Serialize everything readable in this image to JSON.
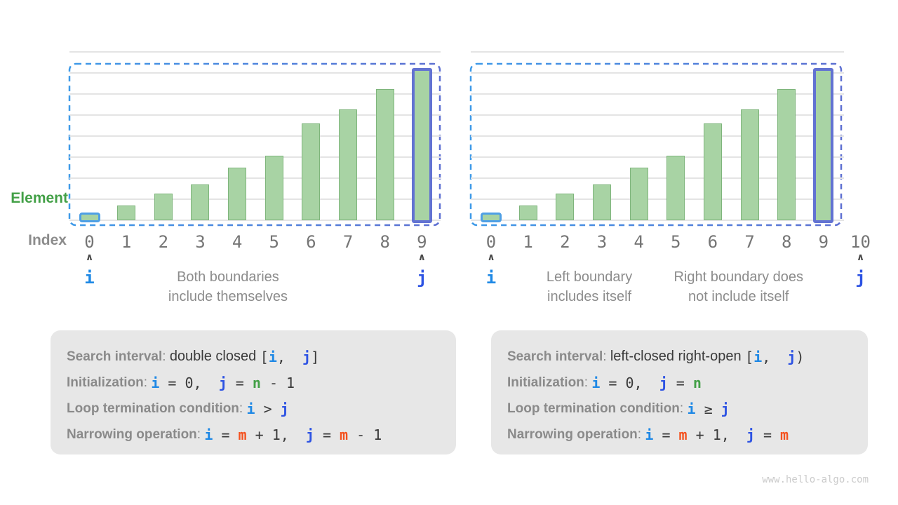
{
  "page": {
    "watermark": "www.hello-algo.com"
  },
  "colors": {
    "i": "#1E88E5",
    "j": "#2D53E3",
    "n": "#43A047",
    "m": "#F4511E",
    "bar_fill": "#A8D3A4",
    "bar_stroke": "#7FB57C",
    "highlight_border": "#6272D2",
    "small_bar_border": "#4E9FE5",
    "selection_dash_left": "#3E9AE8",
    "selection_dash_right": "#5E70D2",
    "gridline": "#E4E4E4",
    "element_label": "#43A047",
    "index_label": "#8C8C8C",
    "caption_text": "#8C8C8C",
    "box_background": "#E7E7E7"
  },
  "chart_data": [
    {
      "type": "bar",
      "name": "double-closed-interval",
      "title": "Search interval: double closed [i, j]",
      "xlabel": "Index",
      "ylabel": "Element",
      "categories": [
        "0",
        "1",
        "2",
        "3",
        "4",
        "5",
        "6",
        "7",
        "8",
        "9"
      ],
      "values": [
        5,
        10,
        18,
        24,
        35,
        43,
        65,
        74,
        88,
        100
      ],
      "values_unit": "relative bar height, % of tallest bar (no numeric axis shown)",
      "grid": true,
      "legend": "none",
      "pointers": [
        {
          "label": "i",
          "index": 0
        },
        {
          "label": "j",
          "index": 9
        }
      ],
      "highlighted_bars": [
        {
          "index": 0,
          "style": "small-blue-border"
        },
        {
          "index": 9,
          "style": "blue-border"
        }
      ],
      "selection": {
        "from_index": 0,
        "to_index": 9,
        "closed_left": true,
        "closed_right": true
      },
      "captions": [
        {
          "text": "Both boundaries\ninclude themselves",
          "center_index": 3.75
        }
      ]
    },
    {
      "type": "bar",
      "name": "left-closed-right-open-interval",
      "title": "Search interval: left-closed right-open [i, j)",
      "xlabel": "Index",
      "ylabel": "Element",
      "categories": [
        "0",
        "1",
        "2",
        "3",
        "4",
        "5",
        "6",
        "7",
        "8",
        "9",
        "10"
      ],
      "values": [
        5,
        10,
        18,
        24,
        35,
        43,
        65,
        74,
        88,
        100,
        null
      ],
      "values_unit": "relative bar height, % of tallest bar (no numeric axis shown)",
      "grid": true,
      "legend": "none",
      "pointers": [
        {
          "label": "i",
          "index": 0
        },
        {
          "label": "j",
          "index": 10
        }
      ],
      "highlighted_bars": [
        {
          "index": 0,
          "style": "small-blue-border"
        },
        {
          "index": 9,
          "style": "blue-border"
        }
      ],
      "selection": {
        "from_index": 0,
        "to_index": 10,
        "closed_left": true,
        "closed_right": false
      },
      "captions": [
        {
          "text": "Left boundary\nincludes itself",
          "center_index": 2.66
        },
        {
          "text": "Right boundary does\nnot include itself",
          "center_index": 6.7
        }
      ]
    }
  ],
  "info_boxes": [
    {
      "lines": [
        {
          "label": "Search interval",
          "code": [
            {
              "t": "double closed ",
              "f": "sans"
            },
            {
              "t": "["
            },
            {
              "t": "i",
              "c": "i"
            },
            {
              "t": ",  "
            },
            {
              "t": "j",
              "c": "j"
            },
            {
              "t": "]"
            }
          ]
        },
        {
          "label": "Initialization",
          "code": [
            {
              "t": "i",
              "c": "i"
            },
            {
              "t": " = 0,  "
            },
            {
              "t": "j",
              "c": "j"
            },
            {
              "t": " = "
            },
            {
              "t": "n",
              "c": "n"
            },
            {
              "t": " - 1"
            }
          ]
        },
        {
          "label": "Loop termination condition",
          "code": [
            {
              "t": "i",
              "c": "i"
            },
            {
              "t": " > "
            },
            {
              "t": "j",
              "c": "j"
            }
          ]
        },
        {
          "label": "Narrowing operation",
          "code": [
            {
              "t": "i",
              "c": "i"
            },
            {
              "t": " = "
            },
            {
              "t": "m",
              "c": "m"
            },
            {
              "t": " + 1,  "
            },
            {
              "t": "j",
              "c": "j"
            },
            {
              "t": " = "
            },
            {
              "t": "m",
              "c": "m"
            },
            {
              "t": " - 1"
            }
          ]
        }
      ]
    },
    {
      "lines": [
        {
          "label": "Search interval",
          "code": [
            {
              "t": "left-closed right-open ",
              "f": "sans"
            },
            {
              "t": "["
            },
            {
              "t": "i",
              "c": "i"
            },
            {
              "t": ",  "
            },
            {
              "t": "j",
              "c": "j"
            },
            {
              "t": ")"
            }
          ]
        },
        {
          "label": "Initialization",
          "code": [
            {
              "t": "i",
              "c": "i"
            },
            {
              "t": " = 0,  "
            },
            {
              "t": "j",
              "c": "j"
            },
            {
              "t": " = "
            },
            {
              "t": "n",
              "c": "n"
            }
          ]
        },
        {
          "label": "Loop termination condition",
          "code": [
            {
              "t": "i",
              "c": "i"
            },
            {
              "t": " ≥ "
            },
            {
              "t": "j",
              "c": "j"
            }
          ]
        },
        {
          "label": "Narrowing operation",
          "code": [
            {
              "t": "i",
              "c": "i"
            },
            {
              "t": " = "
            },
            {
              "t": "m",
              "c": "m"
            },
            {
              "t": " + 1,  "
            },
            {
              "t": "j",
              "c": "j"
            },
            {
              "t": " = "
            },
            {
              "t": "m",
              "c": "m"
            }
          ]
        }
      ]
    }
  ]
}
